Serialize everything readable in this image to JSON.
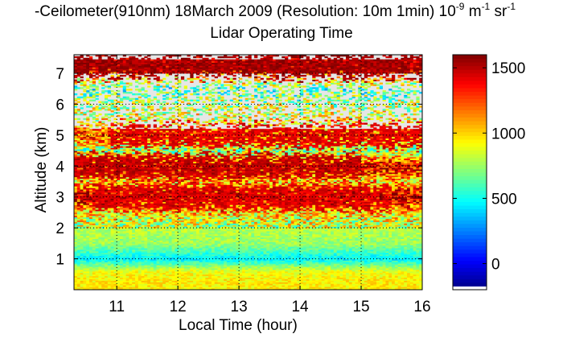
{
  "header": {
    "title_main": "-Ceilometer(910nm) 18March 2009 (Resolution: 10m 1min) 10",
    "title_sup1": "-9",
    "title_unit_m": " m",
    "title_sup2": "-1",
    "title_unit_sr": " sr",
    "title_sup3": "-1",
    "subtitle": "Lidar Operating Time"
  },
  "chart_data": {
    "type": "heatmap",
    "xlabel": "Local Time (hour)",
    "ylabel": "Altitude (km)",
    "xlim": [
      10.3,
      16.0
    ],
    "ylim": [
      0.0,
      7.6
    ],
    "xticks": [
      11,
      12,
      13,
      14,
      15,
      16
    ],
    "yticks": [
      1,
      2,
      3,
      4,
      5,
      6,
      7
    ],
    "grid": true,
    "colorbar": {
      "min": -200,
      "max": 1600,
      "ticks": [
        0,
        500,
        1000,
        1500
      ],
      "colormap": "jet"
    },
    "no_data_color": "#e6e6e6",
    "altitude_profile_km": [
      {
        "altitude": 0.3,
        "value": 950
      },
      {
        "altitude": 0.6,
        "value": 900
      },
      {
        "altitude": 1.0,
        "value": 450
      },
      {
        "altitude": 1.5,
        "value": 750
      },
      {
        "altitude": 2.0,
        "value": 800
      },
      {
        "altitude": 2.5,
        "value": 1000
      },
      {
        "altitude": 3.0,
        "value": 1550
      },
      {
        "altitude": 3.5,
        "value": 1000
      },
      {
        "altitude": 4.0,
        "value": 1500
      },
      {
        "altitude": 4.5,
        "value": 700
      },
      {
        "altitude": 5.0,
        "value": 1300
      },
      {
        "altitude": 5.5,
        "value": 900
      },
      {
        "altitude": 6.0,
        "value": 800
      },
      {
        "altitude": 6.5,
        "value": 600
      },
      {
        "altitude": 7.2,
        "value": 1600
      }
    ],
    "cloud_layers": [
      {
        "altitude_km": 7.2,
        "x_start": 10.3,
        "x_end": 16.0,
        "value": 1600
      },
      {
        "altitude_km": 5.0,
        "x_start": 10.9,
        "x_end": 16.0,
        "value": 1500
      },
      {
        "altitude_km": 4.0,
        "x_start": 10.3,
        "x_end": 15.0,
        "value": 1550
      },
      {
        "altitude_km": 3.0,
        "x_start": 10.6,
        "x_end": 15.5,
        "value": 1500
      }
    ]
  }
}
